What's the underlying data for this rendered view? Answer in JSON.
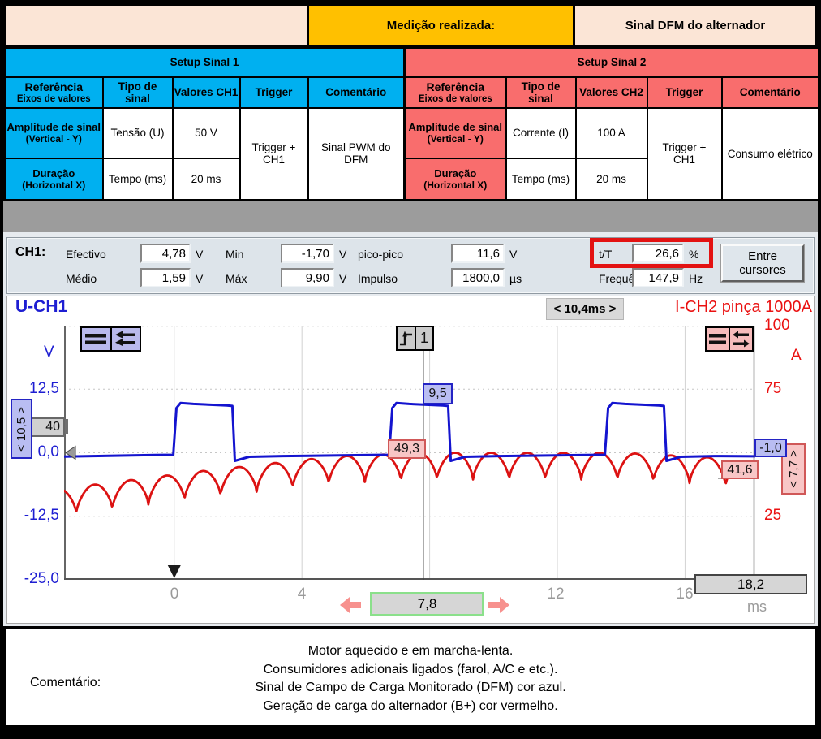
{
  "header": {
    "measurement_label": "Medição realizada:",
    "measurement_value": "Sinal DFM do alternador",
    "accent_orange": "#ffc000",
    "bg_peach": "#fbe5d6"
  },
  "setup1": {
    "title": "Setup Sinal 1",
    "accent": "#00b0f0",
    "col_ref_title": "Referência",
    "col_ref_sub": "Eixos de valores",
    "col_tipo": "Tipo de sinal",
    "col_valores": "Valores CH1",
    "col_trigger": "Trigger",
    "col_comentario": "Comentário",
    "rows": [
      {
        "ref_title": "Amplitude de sinal",
        "ref_sub": "(Vertical - Y)",
        "tipo": "Tensão (U)",
        "valor": "50 V"
      },
      {
        "ref_title": "Duração",
        "ref_sub": "(Horizontal X)",
        "tipo": "Tempo (ms)",
        "valor": "20 ms"
      }
    ],
    "trigger_line1": "Trigger +",
    "trigger_line2": "CH1",
    "comentario": "Sinal PWM do DFM"
  },
  "setup2": {
    "title": "Setup Sinal 2",
    "accent": "#f96d6d",
    "col_ref_title": "Referência",
    "col_ref_sub": "Eixos de valores",
    "col_tipo": "Tipo de sinal",
    "col_valores": "Valores CH2",
    "col_trigger": "Trigger",
    "col_comentario": "Comentário",
    "rows": [
      {
        "ref_title": "Amplitude de sinal",
        "ref_sub": "(Vertical - Y)",
        "tipo": "Corrente (I)",
        "valor": "100 A"
      },
      {
        "ref_title": "Duração",
        "ref_sub": "(Horizontal X)",
        "tipo": "Tempo (ms)",
        "valor": "20 ms"
      }
    ],
    "trigger_line1": "Trigger +",
    "trigger_line2": "CH1",
    "comentario": "Consumo elétrico"
  },
  "measurements": {
    "channel": "CH1:",
    "efectivo_label": "Efectivo",
    "efectivo_value": "4,78",
    "efectivo_unit": "V",
    "medio_label": "Médio",
    "medio_value": "1,59",
    "medio_unit": "V",
    "min_label": "Min",
    "min_value": "-1,70",
    "min_unit": "V",
    "max_label": "Máx",
    "max_value": "9,90",
    "max_unit": "V",
    "picopico_label": "pico-pico",
    "picopico_value": "11,6",
    "picopico_unit": "V",
    "impulso_label": "Impulso",
    "impulso_value": "1800,0",
    "impulso_unit": "µs",
    "tt_label": "t/T",
    "tt_value": "26,6",
    "tt_unit": "%",
    "freq_label": "Frequência",
    "freq_value": "147,9",
    "freq_unit": "Hz",
    "between_cursors_button": "Entre cursores",
    "highlight_color": "#e31212"
  },
  "scope": {
    "ch1_label": "U-CH1",
    "delta_time": "< 10,4ms >",
    "ch2_label": "I-CH2 pinça 1000A",
    "v_unit": "V",
    "a_unit": "A",
    "x_unit": "ms",
    "v_ticks": [
      "12,5",
      "0,0",
      "-12,5",
      "-25,0"
    ],
    "a_ticks": [
      "100",
      "75",
      "50",
      "25"
    ],
    "x_ticks": [
      "0",
      "4",
      "12",
      "16"
    ],
    "trigger_channel": "1",
    "trigger_level_tag": "40",
    "cursor1": {
      "time": "7,8",
      "v": "9,5",
      "a": "49,3"
    },
    "cursor2": {
      "time": "18,2",
      "v": "-1,0",
      "a": "41,6"
    },
    "delta_v": "< 10,5 >",
    "delta_a": "< 7,7 >",
    "ch1_color": "#1414cf",
    "ch2_color": "#dc1212"
  },
  "comment": {
    "label": "Comentário:",
    "lines": [
      "Motor aquecido e em marcha-lenta.",
      "Consumidores adicionais ligados (farol, A/C e etc.).",
      "Sinal de Campo de Carga Monitorado (DFM) cor azul.",
      "Geração de carga do alternador (B+) cor vermelho."
    ]
  },
  "chart_data": {
    "type": "line",
    "title": "",
    "x_unit": "ms",
    "x_range": [
      -3.45,
      18.2
    ],
    "time_gridlines_ms": [
      0,
      4,
      8,
      12,
      16
    ],
    "grid": true,
    "legend_position": "top",
    "left_axis": {
      "unit": "V",
      "range": [
        -25,
        25
      ],
      "ticks": [
        12.5,
        0,
        -12.5,
        -25
      ]
    },
    "right_axis": {
      "unit": "A",
      "range": [
        0,
        100
      ],
      "ticks": [
        100,
        75,
        50,
        25
      ]
    },
    "series": [
      {
        "name": "U-CH1 (DFM PWM)",
        "color": "#1414cf",
        "kind": "pwm",
        "axis": "left",
        "baseline_v": -0.5,
        "top_v": 9.5,
        "undershoot_v": -1.6,
        "period_ms": 6.76,
        "pulse_width_ms": 1.8,
        "duty_pct": 26.6,
        "frequency_hz": 147.9,
        "rise_edges_ms": [
          0,
          6.76,
          13.52
        ]
      },
      {
        "name": "I-CH2 pinça 1000A (B+)",
        "color": "#dc1212",
        "kind": "rectified-ripple",
        "axis": "right",
        "ripple_period_ms": 1.13,
        "ripple_phase_ms": 0.32,
        "ripple_depth_a": 10.5,
        "peak_envelope": [
          [
            -3.45,
            36
          ],
          [
            1,
            43
          ],
          [
            5,
            48.5
          ],
          [
            8,
            50
          ],
          [
            14,
            50
          ],
          [
            17,
            48
          ],
          [
            18.2,
            46
          ]
        ]
      }
    ],
    "cursors": {
      "c1_ms": 7.8,
      "c2_ms": 18.2,
      "delta_ms": 10.4,
      "c1_v": 9.5,
      "c1_a": 49.3,
      "c2_v": -1.0,
      "c2_a": 41.6,
      "delta_v": 10.5,
      "delta_a": 7.7
    },
    "trigger": {
      "time_ms": 0,
      "channel": 1
    }
  }
}
